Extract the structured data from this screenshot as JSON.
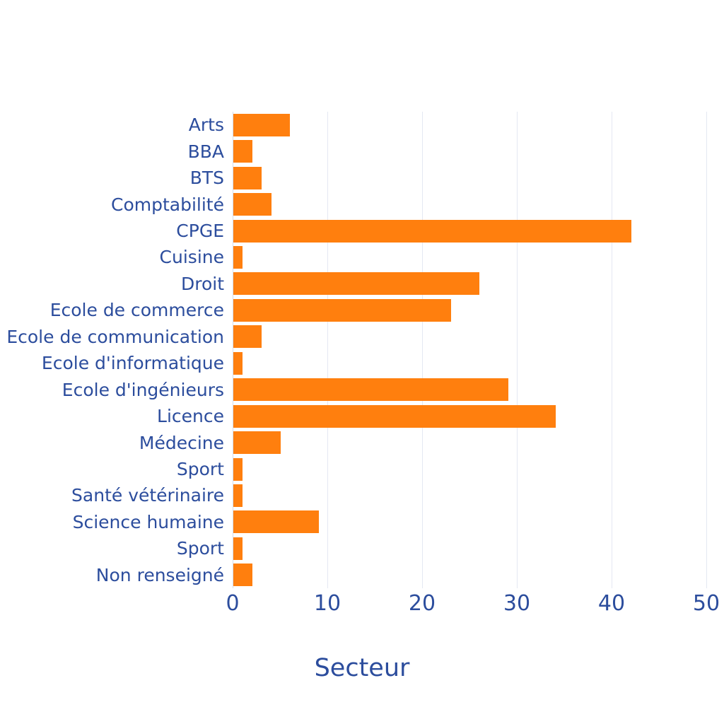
{
  "figure": {
    "title": "Secteur",
    "colors": {
      "bar": "#ff7f0e",
      "text": "#2c4d9d",
      "gridline": "#e4e8f2",
      "zeroline": "#d7dde9",
      "background": "#ffffff"
    }
  },
  "chart_data": {
    "type": "bar",
    "orientation": "horizontal",
    "title": "Secteur",
    "xlabel": "Secteur",
    "ylabel": "",
    "categories": [
      "Arts",
      "BBA",
      "BTS",
      "Comptabilité",
      "CPGE",
      "Cuisine",
      "Droit",
      "Ecole de commerce",
      "Ecole de communication",
      "Ecole d'informatique",
      "Ecole d'ingénieurs",
      "Licence",
      "Médecine",
      "Sport",
      "Santé vétérinaire",
      "Science humaine",
      "Sport",
      "Non renseigné"
    ],
    "values": [
      6,
      2,
      3,
      4,
      42,
      1,
      26,
      23,
      3,
      1,
      29,
      34,
      5,
      1,
      1,
      9,
      1,
      2
    ],
    "x_ticks": [
      0,
      10,
      20,
      30,
      40,
      50
    ],
    "xlim": [
      0,
      50.6
    ],
    "grid": true,
    "legend": false
  }
}
